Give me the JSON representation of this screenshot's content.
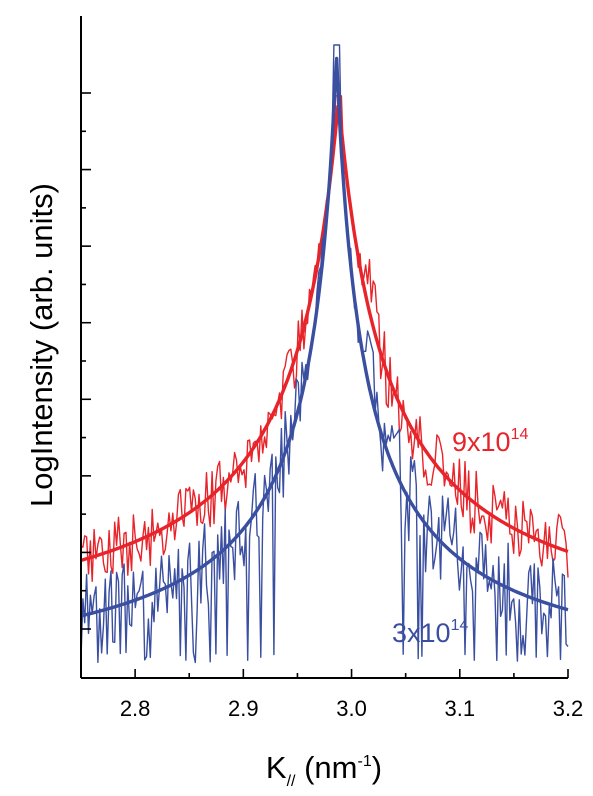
{
  "chart_data": {
    "type": "line",
    "xlabel_main": "K",
    "xlabel_sub": "//",
    "xlabel_unit_open": " (nm",
    "xlabel_unit_sup": "-1",
    "xlabel_unit_close": ")",
    "ylabel": "LogIntensity (arb. units)",
    "xlim": [
      2.75,
      3.2
    ],
    "ylim": [
      0,
      1
    ],
    "x_ticks": [
      2.8,
      2.9,
      3.0,
      3.1,
      3.2
    ],
    "x_tick_labels": [
      "2.8",
      "2.9",
      "3.0",
      "3.1",
      "3.2"
    ],
    "y_ticks_count": 8,
    "grid": false,
    "series": [
      {
        "key": "red",
        "label_base": "9x10",
        "label_sup": "14",
        "color": "#e8242b",
        "center": 2.988,
        "peak": 0.905,
        "floor": 0.02,
        "width": 0.045,
        "exponent": 1.0,
        "noise_left": 0.05,
        "noise_right": 0.055,
        "shoulder": {
          "x": 3.019,
          "height": 0.07,
          "width": 0.005
        }
      },
      {
        "key": "blue",
        "label_base": "3x10",
        "label_sup": "14",
        "color": "#3a4fa0",
        "center": 2.986,
        "peak": 0.982,
        "floor": -0.045,
        "width": 0.027,
        "exponent": 0.95,
        "noise_left": 0.07,
        "noise_right": 0.085,
        "shoulder": {
          "x": 3.016,
          "height": 0.09,
          "width": 0.004
        },
        "shoulder_left": {
          "x": 2.97,
          "height": 0.05,
          "width": 0.004
        }
      }
    ]
  }
}
